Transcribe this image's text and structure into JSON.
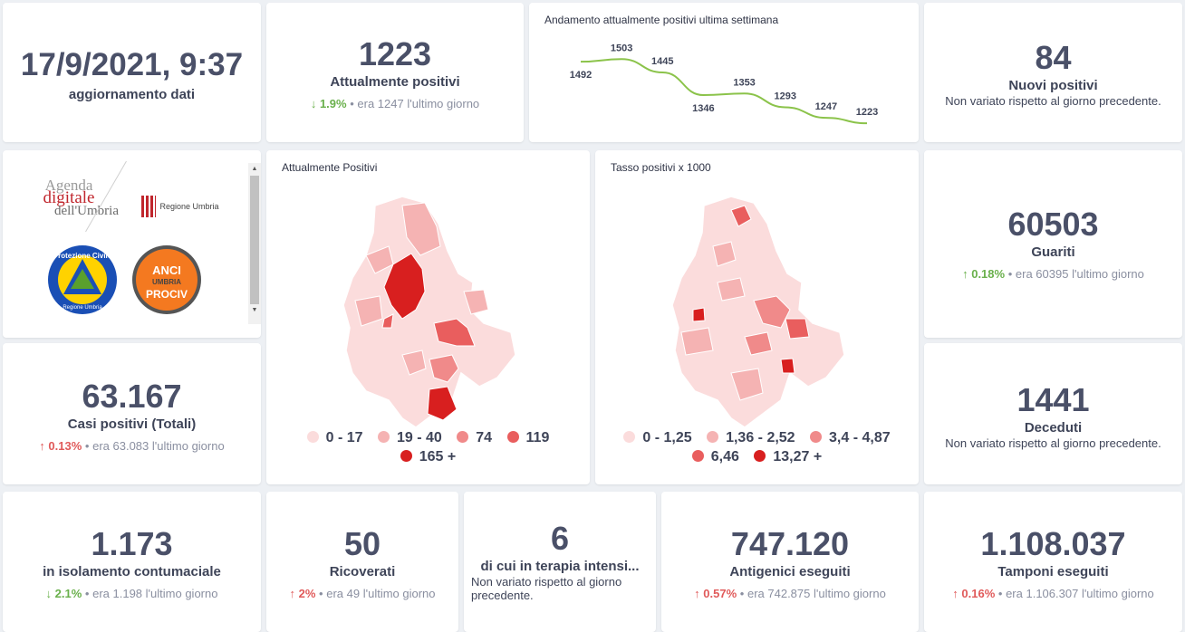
{
  "update": {
    "datetime": "17/9/2021, 9:37",
    "label": "aggiornamento dati"
  },
  "positivi": {
    "value": "1223",
    "label": "Attualmente positivi",
    "pct": "1.9%",
    "prev": "era 1247",
    "suffix": "l'ultimo giorno",
    "direction": "down"
  },
  "trend": {
    "title": "Andamento attualmente positivi ultima settimana",
    "chart_data": {
      "type": "line",
      "values": [
        1492,
        1503,
        1445,
        1346,
        1353,
        1293,
        1247,
        1223
      ],
      "labels": [
        "1492",
        "1503",
        "1445",
        "1346",
        "1353",
        "1293",
        "1247",
        "1223"
      ],
      "color": "#8bc34a"
    }
  },
  "nuovi": {
    "value": "84",
    "label": "Nuovi positivi",
    "note": "Non variato rispetto al giorno precedente."
  },
  "logos": {
    "agenda_line1": "Agenda",
    "agenda_line2": "digitale",
    "agenda_line3": "dell'Umbria",
    "regione": "Regione Umbria",
    "protezione_civile": "Protezione Civile",
    "protezione_sub": "Regione Umbria",
    "anci1": "ANCI",
    "anci2": "UMBRIA",
    "anci3": "PROCIV"
  },
  "map1": {
    "title": "Attualmente Positivi",
    "legend": [
      {
        "label": "0 - 17",
        "color": "#fbdcdc"
      },
      {
        "label": "19 - 40",
        "color": "#f5b3b3"
      },
      {
        "label": "74",
        "color": "#f08a8a"
      },
      {
        "label": "119",
        "color": "#e95e5e"
      },
      {
        "label": "165 +",
        "color": "#d81f1f"
      }
    ]
  },
  "map2": {
    "title": "Tasso positivi x 1000",
    "legend": [
      {
        "label": "0 - 1,25",
        "color": "#fbdcdc"
      },
      {
        "label": "1,36 - 2,52",
        "color": "#f5b3b3"
      },
      {
        "label": "3,4 - 4,87",
        "color": "#f08a8a"
      },
      {
        "label": "6,46",
        "color": "#e95e5e"
      },
      {
        "label": "13,27 +",
        "color": "#d81f1f"
      }
    ]
  },
  "guariti": {
    "value": "60503",
    "label": "Guariti",
    "pct": "0.18%",
    "prev": "era 60395",
    "suffix": "l'ultimo giorno",
    "direction": "up"
  },
  "casi": {
    "value": "63.167",
    "label": "Casi positivi (Totali)",
    "pct": "0.13%",
    "prev": "era 63.083",
    "suffix": "l'ultimo giorno",
    "direction": "up"
  },
  "deceduti": {
    "value": "1441",
    "label": "Deceduti",
    "note": "Non variato rispetto al giorno precedente."
  },
  "isolamento": {
    "value": "1.173",
    "label": "in isolamento contumaciale",
    "pct": "2.1%",
    "prev": "era 1.198",
    "suffix": "l'ultimo giorno",
    "direction": "down"
  },
  "ricoverati": {
    "value": "50",
    "label": "Ricoverati",
    "pct": "2%",
    "prev": "era 49",
    "suffix": "l'ultimo giorno",
    "direction": "up"
  },
  "terapia": {
    "value": "6",
    "label": "di cui in terapia intensi...",
    "note": "Non variato rispetto al giorno precedente."
  },
  "antigenici": {
    "value": "747.120",
    "label": "Antigenici eseguiti",
    "pct": "0.57%",
    "prev": "era 742.875",
    "suffix": "l'ultimo giorno",
    "direction": "up"
  },
  "tamponi": {
    "value": "1.108.037",
    "label": "Tamponi eseguiti",
    "pct": "0.16%",
    "prev": "era 1.106.307",
    "suffix": "l'ultimo giorno",
    "direction": "up"
  },
  "icons": {
    "arrow_up": "↑",
    "arrow_down": "↓",
    "bullet": "•"
  }
}
